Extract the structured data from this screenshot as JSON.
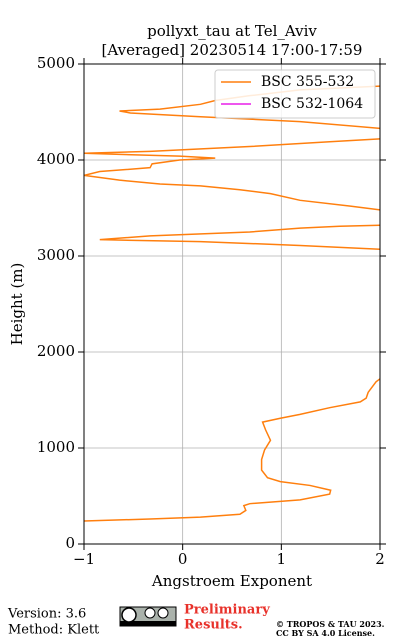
{
  "chart_data": {
    "type": "line",
    "orientation": "vertical",
    "title": "pollyxt_tau at Tel_Aviv",
    "subtitle": "[Averaged] 20230514 17:00-17:59",
    "x_label": "Angstroem Exponent",
    "y_label": "Height (m)",
    "xlim": [
      -1,
      2
    ],
    "xticks": [
      {
        "value": -1,
        "label": "−1"
      },
      0,
      1,
      2
    ],
    "ylim": [
      0,
      5000
    ],
    "yticks": [
      0,
      1000,
      2000,
      3000,
      4000,
      5000
    ],
    "grid": true,
    "legend": "upper right",
    "y": [
      240,
      260,
      280,
      310,
      350,
      400,
      420,
      460,
      520,
      560,
      610,
      650,
      690,
      770,
      880,
      980,
      1080,
      1190,
      1270,
      1310,
      1350,
      1420,
      1480,
      1520,
      1580,
      1690,
      1720,
      null,
      3070,
      3110,
      3150,
      3170,
      3210,
      3250,
      3290,
      3310,
      3320,
      null,
      3480,
      3520,
      3580,
      3650,
      3690,
      3730,
      3750,
      3790,
      3840,
      3880,
      3920,
      3960,
      4000,
      4020,
      4040,
      4070,
      4090,
      4140,
      4190,
      4220,
      null,
      4330,
      4400,
      4450,
      4490,
      4510,
      4530,
      4580,
      4620,
      4670,
      4730,
      4770
    ],
    "series": [
      {
        "name": "BSC 355-532",
        "color": "#ff7f0e",
        "values": [
          -1.0,
          -0.33,
          0.18,
          0.58,
          0.64,
          0.62,
          0.68,
          1.19,
          1.49,
          1.5,
          1.29,
          0.99,
          0.86,
          0.8,
          0.8,
          0.83,
          0.89,
          0.84,
          0.81,
          0.99,
          1.19,
          1.49,
          1.8,
          1.86,
          1.88,
          1.96,
          2.0,
          null,
          2.0,
          1.19,
          0.18,
          -0.84,
          -0.33,
          0.68,
          1.19,
          1.59,
          2.0,
          null,
          2.0,
          1.7,
          1.19,
          0.89,
          0.58,
          0.18,
          -0.23,
          -0.64,
          -1.0,
          -0.84,
          -0.33,
          -0.31,
          -0.03,
          0.33,
          -0.03,
          -1.0,
          -0.33,
          0.68,
          1.49,
          2.0,
          null,
          2.0,
          1.19,
          0.18,
          -0.53,
          -0.64,
          -0.23,
          0.18,
          0.33,
          0.68,
          1.19,
          2.0
        ]
      },
      {
        "name": "BSC 532-1064",
        "color": "#e91ee9",
        "values": [
          null,
          null,
          null,
          null,
          null,
          null,
          null,
          null,
          null,
          null,
          null,
          null,
          null,
          null,
          null,
          null,
          null,
          null,
          null,
          null,
          null,
          null,
          null,
          null,
          null,
          null,
          null,
          null,
          null,
          null,
          null,
          null,
          null,
          null,
          null,
          null,
          null,
          null,
          null,
          null,
          null,
          null,
          null,
          null,
          null,
          null,
          null,
          null,
          null,
          null,
          null,
          null,
          null,
          null,
          null,
          null,
          null,
          null,
          null,
          null,
          null,
          null,
          null,
          null,
          null,
          null,
          null,
          null,
          null,
          null
        ]
      }
    ]
  },
  "footer": {
    "version": "Version: 3.6",
    "method": "Method: Klett",
    "notice": [
      "Preliminary",
      "Results."
    ],
    "license": [
      "© TROPOS & TAU 2023.",
      "CC BY SA 4.0 License."
    ]
  }
}
